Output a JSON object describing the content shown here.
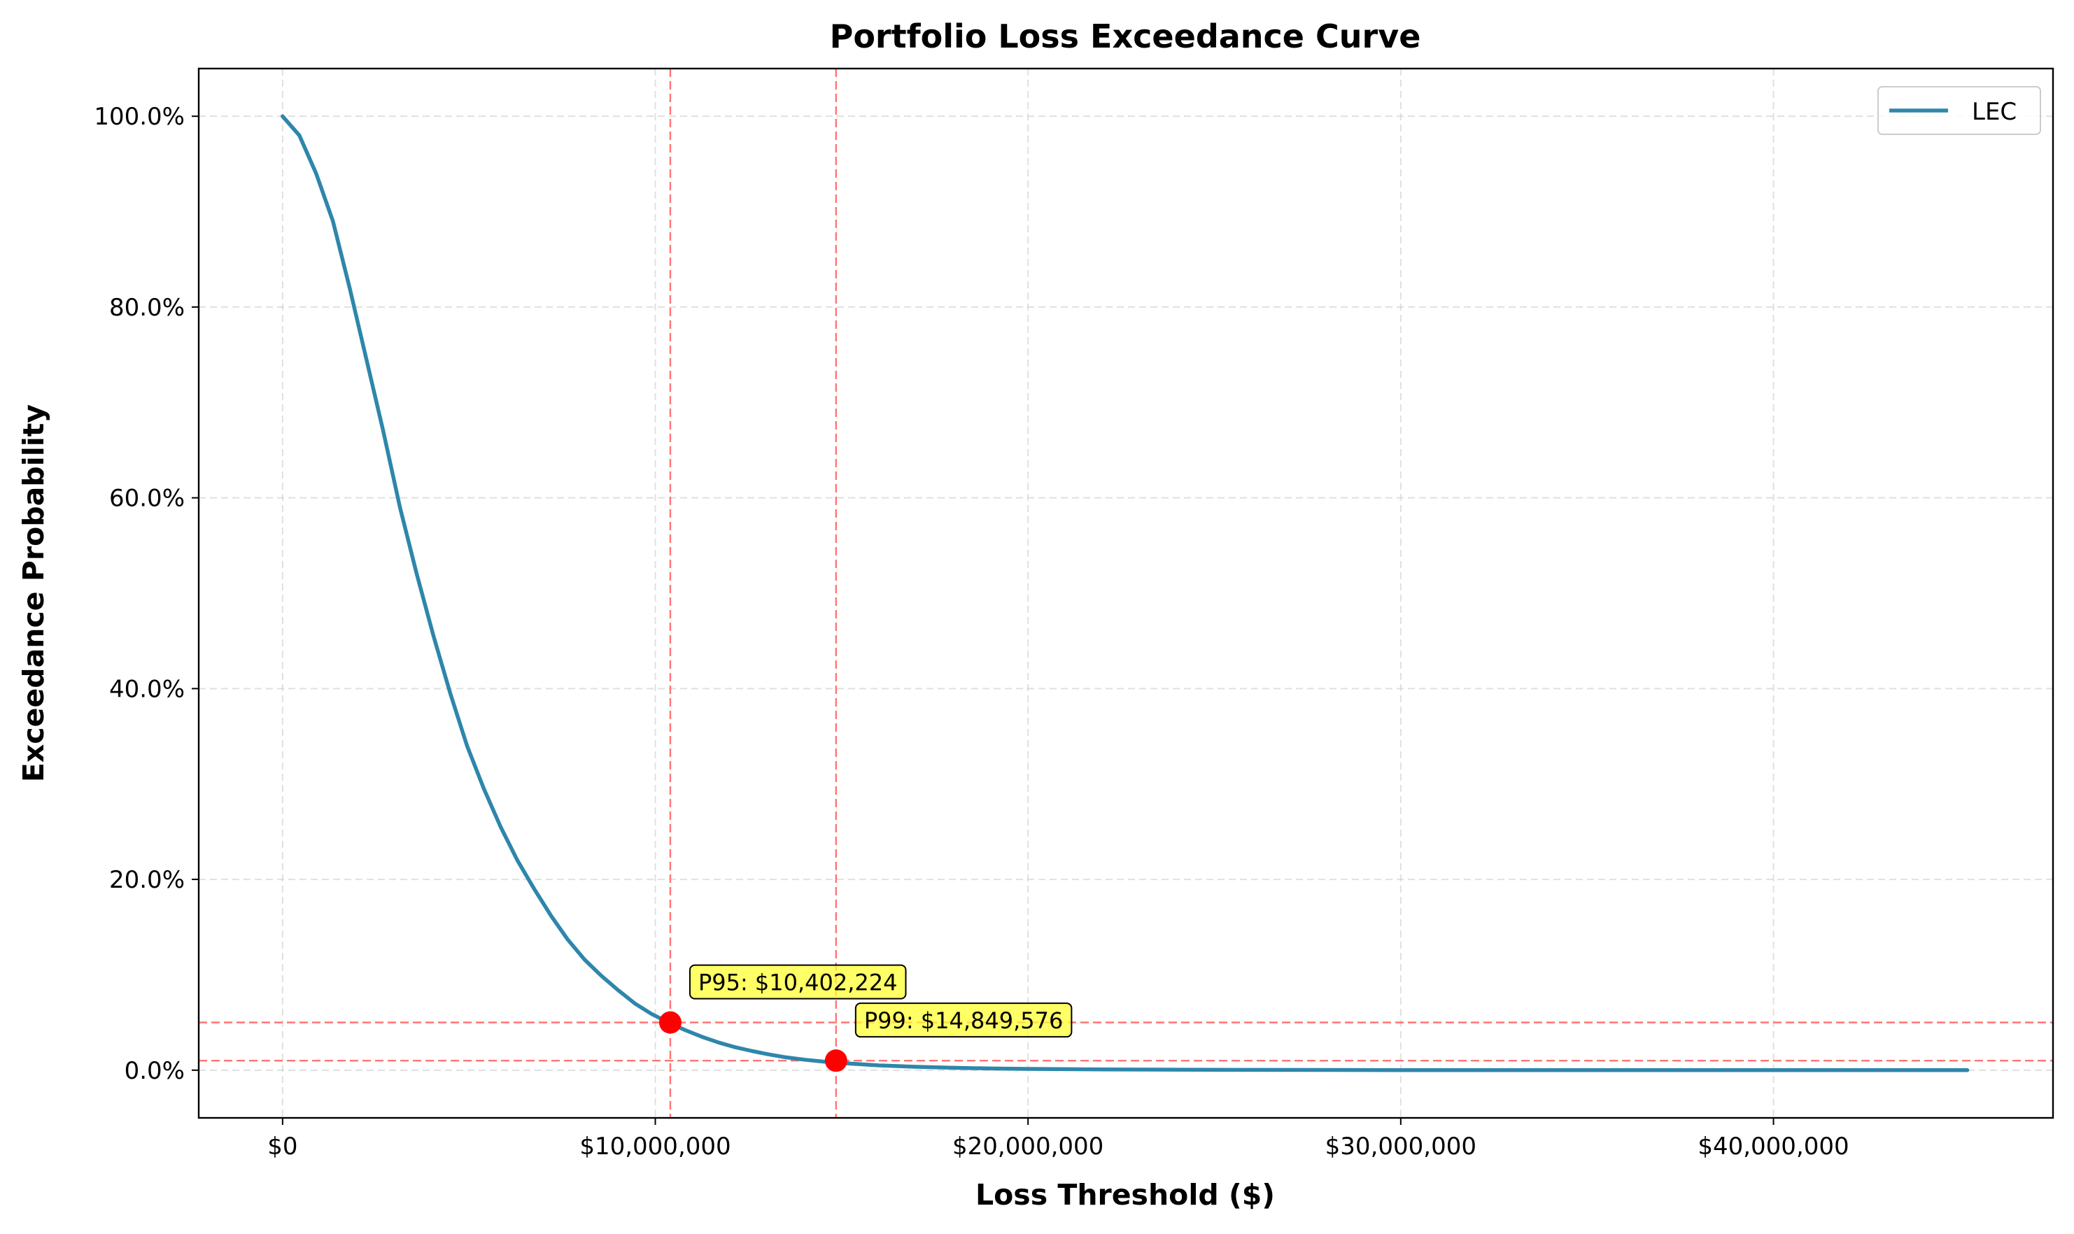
{
  "chart_data": {
    "type": "line",
    "title": "Portfolio Loss Exceedance Curve",
    "xlabel": "Loss Threshold ($)",
    "ylabel": "Exceedance Probability",
    "xlim": [
      -2250000,
      47500000
    ],
    "ylim": [
      -0.05,
      1.05
    ],
    "x_ticks": [
      0,
      10000000,
      20000000,
      30000000,
      40000000
    ],
    "x_tick_labels": [
      "$0",
      "$10,000,000",
      "$20,000,000",
      "$30,000,000",
      "$40,000,000"
    ],
    "y_ticks": [
      0,
      0.2,
      0.4,
      0.6,
      0.8,
      1.0
    ],
    "y_tick_labels": [
      "0.0%",
      "20.0%",
      "40.0%",
      "60.0%",
      "80.0%",
      "100.0%"
    ],
    "grid": true,
    "legend": {
      "placement": "top-right",
      "entries": [
        "LEC"
      ]
    },
    "series": [
      {
        "name": "LEC",
        "color": "#2e86ab",
        "x": [
          0,
          450000,
          900000,
          1350000,
          1800000,
          2250000,
          2700000,
          3150000,
          3600000,
          4050000,
          4500000,
          4950000,
          5400000,
          5850000,
          6300000,
          6750000,
          7200000,
          7650000,
          8100000,
          8550000,
          9000000,
          9450000,
          9900000,
          10350000,
          10800000,
          11250000,
          11700000,
          12150000,
          12600000,
          13050000,
          13500000,
          14000000,
          14500000,
          15000000,
          16000000,
          17000000,
          18000000,
          19000000,
          20000000,
          22000000,
          24000000,
          26000000,
          28000000,
          30000000,
          33000000,
          36000000,
          39000000,
          42000000,
          45200000
        ],
        "y": [
          1.0,
          0.98,
          0.94,
          0.89,
          0.82,
          0.745,
          0.67,
          0.59,
          0.52,
          0.455,
          0.395,
          0.34,
          0.295,
          0.255,
          0.22,
          0.19,
          0.162,
          0.137,
          0.116,
          0.099,
          0.084,
          0.07,
          0.059,
          0.05,
          0.042,
          0.035,
          0.029,
          0.024,
          0.02,
          0.0165,
          0.0135,
          0.011,
          0.009,
          0.0075,
          0.005,
          0.0035,
          0.0025,
          0.0018,
          0.0013,
          0.0008,
          0.0005,
          0.0003,
          0.0002,
          0.0001,
          5e-05,
          3e-05,
          2e-05,
          1e-05,
          0.0
        ]
      }
    ],
    "reference_lines": {
      "color": "#ff6666",
      "vertical": [
        10402224,
        14849576
      ],
      "horizontal": [
        0.05,
        0.01
      ]
    },
    "points": [
      {
        "label": "P95: $10,402,224",
        "x": 10402224,
        "y": 0.05
      },
      {
        "label": "P99: $14,849,576",
        "x": 14849576,
        "y": 0.01
      }
    ],
    "marker_color": "#ff0000",
    "annotation_bg": "#ffff33"
  }
}
